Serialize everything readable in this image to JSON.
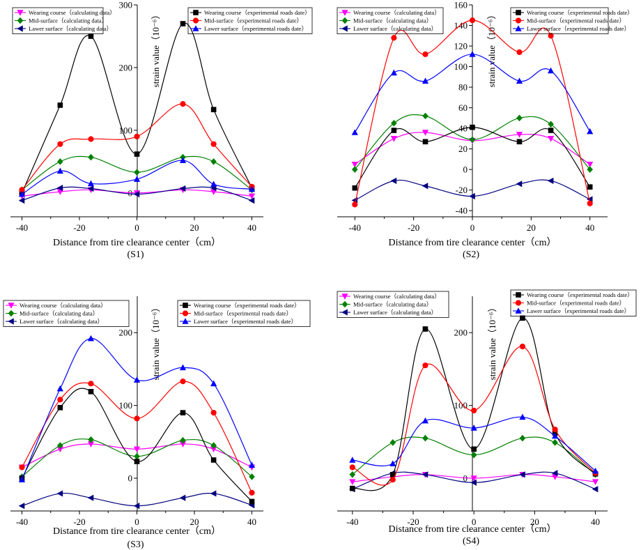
{
  "figure": {
    "legend_calc_entries": [
      {
        "label": "Wearing course（calculating data）",
        "marker": "triangle-down",
        "color": "#FF00FF"
      },
      {
        "label": "Mid-surface（calculating data）",
        "marker": "diamond",
        "color": "#008000"
      },
      {
        "label": "Lawer surface（calculating data）",
        "marker": "triangle-left",
        "color": "#000080"
      }
    ],
    "legend_exp_entries": [
      {
        "label": "Wearing course（experimental roads date）",
        "marker": "square",
        "color": "#000000"
      },
      {
        "label": "Mid-surface（experimental roads date）",
        "marker": "circle",
        "color": "#FF0000"
      },
      {
        "label": "Lawer surface（experimental roads date）",
        "marker": "triangle-up",
        "color": "#0000FF"
      }
    ]
  },
  "chart_data": [
    {
      "type": "line",
      "title": "(S1)",
      "xlabel": "Distance from tire clearance center（cm）",
      "ylabel": "strain value（10⁻⁶）",
      "xlim": [
        -44,
        44
      ],
      "ylim": [
        -38,
        300
      ],
      "xticks": [
        -40,
        -20,
        0,
        20,
        40
      ],
      "yticks": [
        0,
        100,
        200,
        300
      ],
      "x": [
        -40,
        -26.7,
        -16,
        0,
        16,
        26.7,
        40
      ],
      "series": [
        {
          "name": "Wearing course（calculating data）",
          "values": [
            -5,
            2,
            5,
            0,
            5,
            2,
            -5
          ]
        },
        {
          "name": "Mid-surface（calculating data）",
          "values": [
            5,
            50,
            57,
            33,
            57,
            50,
            5
          ]
        },
        {
          "name": "Lawer surface（calculating data）",
          "values": [
            -12,
            8,
            7,
            -2,
            7,
            8,
            -12
          ]
        },
        {
          "name": "Wearing course（experimental roads date）",
          "values": [
            0,
            140,
            250,
            62,
            270,
            133,
            8
          ]
        },
        {
          "name": "Mid-surface（experimental roads date）",
          "values": [
            5,
            78,
            86,
            90,
            142,
            78,
            10
          ]
        },
        {
          "name": "Lawer surface（experimental roads date）",
          "values": [
            -2,
            35,
            15,
            22,
            52,
            14,
            6
          ]
        }
      ]
    },
    {
      "type": "line",
      "title": "(S2)",
      "xlabel": "Distance from tire clearance center（cm）",
      "ylabel": "strain value（10⁻⁶）",
      "xlim": [
        -46,
        46
      ],
      "ylim": [
        -46,
        160
      ],
      "xticks": [
        -40,
        -20,
        0,
        20,
        40
      ],
      "yticks": [
        -40,
        -20,
        0,
        20,
        40,
        60,
        80,
        100,
        120,
        140,
        160
      ],
      "x": [
        -40,
        -26.7,
        -16,
        0,
        16,
        26.7,
        40
      ],
      "series": [
        {
          "name": "Wearing course（calculating data）",
          "values": [
            5,
            30,
            36,
            28,
            34,
            30,
            5
          ]
        },
        {
          "name": "Mid-surface（calculating data）",
          "values": [
            0,
            45,
            52,
            29,
            50,
            44,
            0
          ]
        },
        {
          "name": "Lawer surface（calculating data）",
          "values": [
            -30,
            -11,
            -16,
            -26,
            -14,
            -11,
            -29
          ]
        },
        {
          "name": "Wearing course（experimental roads date）",
          "values": [
            -18,
            38,
            27,
            41,
            27,
            38,
            -17
          ]
        },
        {
          "name": "Mid-surface（experimental roads date）",
          "values": [
            -34,
            128,
            112,
            145,
            114,
            130,
            -33
          ]
        },
        {
          "name": "Lawer surface（experimental roads date）",
          "values": [
            36,
            94,
            86,
            112,
            86,
            96,
            37
          ]
        }
      ]
    },
    {
      "type": "line",
      "title": "(S3)",
      "xlabel": "Distance from tire clearance center（cm）",
      "ylabel": "strain value（10⁻⁶）",
      "xlim": [
        -44,
        44
      ],
      "ylim": [
        -45,
        250
      ],
      "xticks": [
        -40,
        -20,
        0,
        20,
        40
      ],
      "yticks": [
        0,
        100,
        200
      ],
      "x": [
        -40,
        -26.7,
        -16,
        0,
        16,
        26.7,
        40
      ],
      "series": [
        {
          "name": "Wearing course（calculating data）",
          "values": [
            15,
            40,
            47,
            40,
            47,
            40,
            15
          ]
        },
        {
          "name": "Mid-surface（calculating data）",
          "values": [
            2,
            45,
            53,
            30,
            52,
            45,
            2
          ]
        },
        {
          "name": "Lawer surface（calculating data）",
          "values": [
            -38,
            -21,
            -27,
            -38,
            -27,
            -21,
            -37
          ]
        },
        {
          "name": "Wearing course（experimental roads date）",
          "values": [
            0,
            97,
            119,
            23,
            90,
            25,
            -32
          ]
        },
        {
          "name": "Mid-surface（experimental roads date）",
          "values": [
            15,
            108,
            130,
            82,
            133,
            90,
            -20
          ]
        },
        {
          "name": "Lawer surface（experimental roads date）",
          "values": [
            -2,
            123,
            192,
            135,
            152,
            130,
            18
          ]
        }
      ]
    },
    {
      "type": "line",
      "title": "(S4)",
      "xlabel": "Distance from tire clearance center（cm）",
      "ylabel": "strain value（10⁻⁶）",
      "xlim": [
        -45,
        44
      ],
      "ylim": [
        -45,
        250
      ],
      "xticks": [
        -40,
        -20,
        0,
        20,
        40
      ],
      "yticks": [
        0,
        100,
        200
      ],
      "x": [
        -40,
        -26.7,
        -16,
        0,
        16,
        26.7,
        40
      ],
      "series": [
        {
          "name": "Wearing course（calculating data）",
          "values": [
            -5,
            2,
            5,
            0,
            5,
            2,
            -5
          ]
        },
        {
          "name": "Mid-surface（calculating data）",
          "values": [
            5,
            49,
            55,
            32,
            55,
            49,
            5
          ]
        },
        {
          "name": "Lawer surface（calculating data）",
          "values": [
            -15,
            7,
            5,
            -6,
            5,
            7,
            -15
          ]
        },
        {
          "name": "Wearing course（experimental roads date）",
          "values": [
            -14,
            5,
            205,
            40,
            220,
            62,
            6
          ]
        },
        {
          "name": "Mid-surface（experimental roads date）",
          "values": [
            15,
            -2,
            155,
            93,
            181,
            67,
            7
          ]
        },
        {
          "name": "Lawer surface（experimental roads date）",
          "values": [
            25,
            20,
            79,
            69,
            84,
            58,
            10
          ]
        }
      ]
    }
  ]
}
